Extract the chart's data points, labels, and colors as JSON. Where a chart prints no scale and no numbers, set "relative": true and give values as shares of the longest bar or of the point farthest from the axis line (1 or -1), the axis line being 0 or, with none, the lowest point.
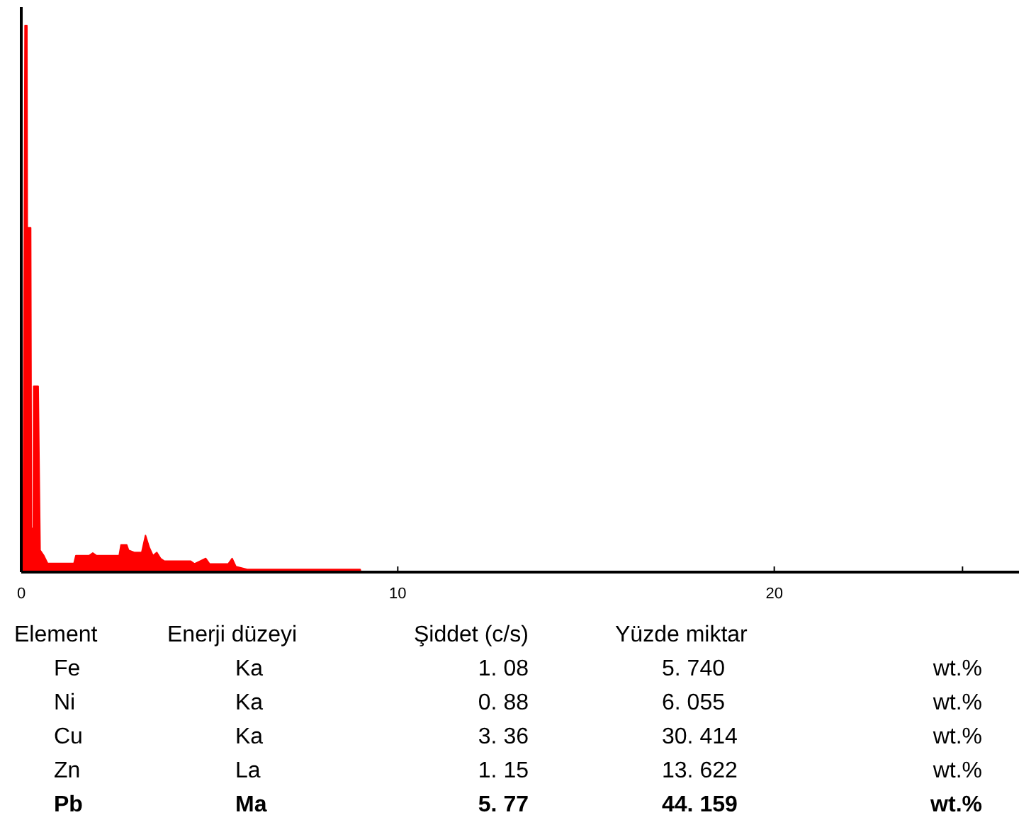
{
  "chart_data": [
    {
      "type": "area",
      "relative": true,
      "color": "#ff0000",
      "xlim": [
        0,
        26.5
      ],
      "xticks": [
        0,
        10,
        20,
        {
          "value": 25,
          "label": null
        }
      ],
      "x": [
        0.05,
        0.1,
        0.15,
        0.16,
        0.25,
        0.27,
        0.32,
        0.33,
        0.45,
        0.5,
        0.6,
        0.7,
        1.4,
        1.45,
        1.8,
        1.9,
        2.0,
        2.6,
        2.65,
        2.8,
        2.85,
        3.0,
        3.2,
        3.3,
        3.4,
        3.5,
        3.6,
        3.7,
        3.8,
        4.5,
        4.6,
        4.9,
        5.0,
        5.5,
        5.6,
        5.7,
        6.0,
        9.0,
        9.02
      ],
      "values": [
        0.005,
        1.0,
        1.0,
        0.63,
        0.63,
        0.08,
        0.08,
        0.34,
        0.34,
        0.04,
        0.03,
        0.016,
        0.016,
        0.03,
        0.03,
        0.035,
        0.03,
        0.03,
        0.05,
        0.05,
        0.04,
        0.036,
        0.036,
        0.067,
        0.045,
        0.03,
        0.036,
        0.025,
        0.02,
        0.02,
        0.015,
        0.025,
        0.015,
        0.015,
        0.025,
        0.01,
        0.005,
        0.005,
        0
      ]
    },
    {
      "type": "other",
      "annotations": [
        "Element",
        "Enerji düzeyi",
        "Şiddet (c/s)",
        "Yüzde miktar",
        "Fe",
        "Ka",
        "1. 08",
        "5. 740",
        "wt.%",
        "Ni",
        "Ka",
        "0. 88",
        "6. 055",
        "wt.%",
        "Cu",
        "Ka",
        "3. 36",
        "30. 414",
        "wt.%",
        "Zn",
        "La",
        "1. 15",
        "13. 622",
        "wt.%",
        "Pb",
        "Ma",
        "5. 77",
        "44. 159",
        "wt.%"
      ]
    }
  ]
}
